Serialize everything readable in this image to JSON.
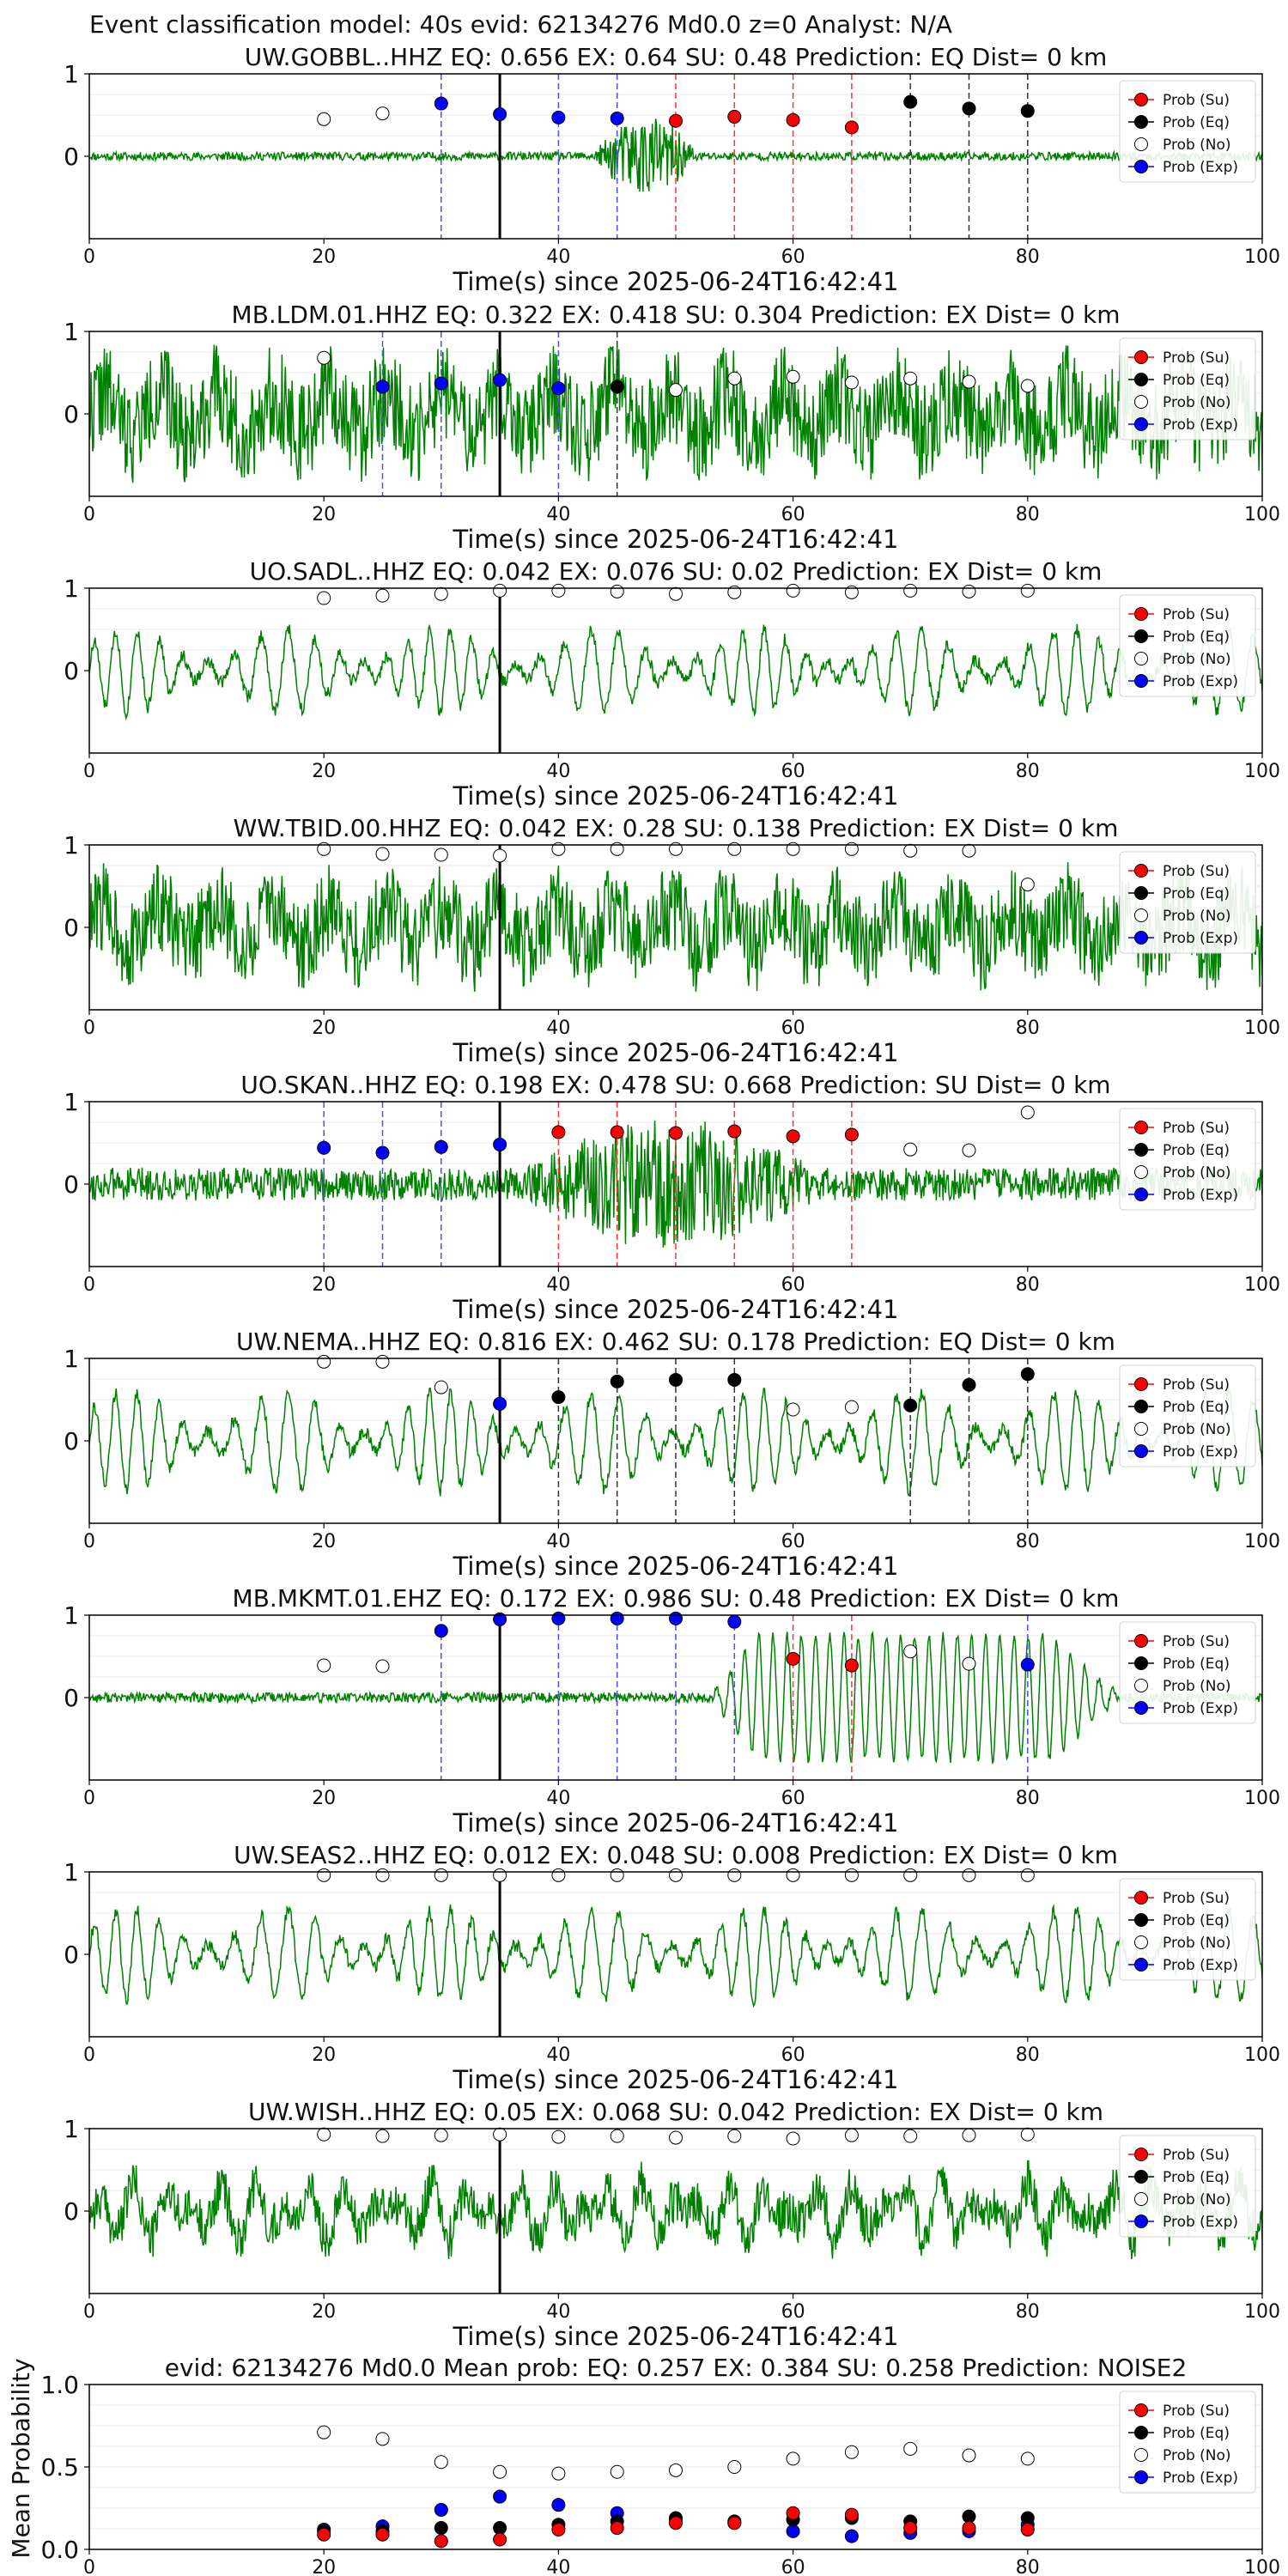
{
  "figure": {
    "suptitle": "Event classification model: 40s evid: 62134276 Md0.0 z=0 Analyst: N/A"
  },
  "legend_labels": [
    "Prob (Su)",
    "Prob (Eq)",
    "Prob (No)",
    "Prob (Exp)"
  ],
  "colors": {
    "Su": "#ff0000",
    "Eq": "#000000",
    "No": "#ffffff",
    "Exp": "#0000ff",
    "waveform": "#008000",
    "event_line": "#000000"
  },
  "chart_data": [
    {
      "type": "line+scatter",
      "title": "UW.GOBBL..HHZ   EQ: 0.656  EX: 0.64  SU: 0.48   Prediction: EQ    Dist= 0 km",
      "xlabel": "Time(s) since 2025-06-24T16:42:41",
      "xlim": [
        0,
        100
      ],
      "xticks": [
        "0",
        "20",
        "40",
        "60",
        "80",
        "100"
      ],
      "yticks": [
        "0",
        "1"
      ],
      "ylim": [
        -1,
        1
      ],
      "legend_position": "top-right",
      "event_time": 35,
      "waveform": {
        "style": "burst",
        "amp": 0.05,
        "seed": 11,
        "burst": [
          43,
          52,
          0.45
        ]
      },
      "points": [
        {
          "x": 20,
          "y": 0.45,
          "cls": "No"
        },
        {
          "x": 25,
          "y": 0.52,
          "cls": "No"
        },
        {
          "x": 30,
          "y": 0.64,
          "cls": "Exp"
        },
        {
          "x": 35,
          "y": 0.51,
          "cls": "Exp"
        },
        {
          "x": 40,
          "y": 0.47,
          "cls": "Exp"
        },
        {
          "x": 45,
          "y": 0.46,
          "cls": "Exp"
        },
        {
          "x": 50,
          "y": 0.43,
          "cls": "Su"
        },
        {
          "x": 55,
          "y": 0.48,
          "cls": "Su"
        },
        {
          "x": 60,
          "y": 0.44,
          "cls": "Su"
        },
        {
          "x": 65,
          "y": 0.35,
          "cls": "Su"
        },
        {
          "x": 70,
          "y": 0.66,
          "cls": "Eq"
        },
        {
          "x": 75,
          "y": 0.58,
          "cls": "Eq"
        },
        {
          "x": 80,
          "y": 0.55,
          "cls": "Eq"
        }
      ]
    },
    {
      "type": "line+scatter",
      "title": "MB.LDM.01.HHZ   EQ: 0.322  EX: 0.418  SU: 0.304   Prediction: EX    Dist= 0 km",
      "xlabel": "Time(s) since 2025-06-24T16:42:41",
      "xlim": [
        0,
        100
      ],
      "xticks": [
        "0",
        "20",
        "40",
        "60",
        "80",
        "100"
      ],
      "yticks": [
        "0",
        "1"
      ],
      "ylim": [
        -1,
        1
      ],
      "legend_position": "top-right",
      "event_time": 35,
      "waveform": {
        "style": "noise",
        "amp": 0.6,
        "seed": 22
      },
      "points": [
        {
          "x": 20,
          "y": 0.68,
          "cls": "No"
        },
        {
          "x": 25,
          "y": 0.33,
          "cls": "Exp"
        },
        {
          "x": 30,
          "y": 0.37,
          "cls": "Exp"
        },
        {
          "x": 35,
          "y": 0.41,
          "cls": "Exp"
        },
        {
          "x": 40,
          "y": 0.31,
          "cls": "Exp"
        },
        {
          "x": 45,
          "y": 0.33,
          "cls": "Eq"
        },
        {
          "x": 50,
          "y": 0.29,
          "cls": "No"
        },
        {
          "x": 55,
          "y": 0.43,
          "cls": "No"
        },
        {
          "x": 60,
          "y": 0.45,
          "cls": "No"
        },
        {
          "x": 65,
          "y": 0.38,
          "cls": "No"
        },
        {
          "x": 70,
          "y": 0.43,
          "cls": "No"
        },
        {
          "x": 75,
          "y": 0.39,
          "cls": "No"
        },
        {
          "x": 80,
          "y": 0.34,
          "cls": "No"
        }
      ]
    },
    {
      "type": "line+scatter",
      "title": "UO.SADL..HHZ   EQ: 0.042  EX: 0.076  SU: 0.02   Prediction: EX    Dist= 0 km",
      "xlabel": "Time(s) since 2025-06-24T16:42:41",
      "xlim": [
        0,
        100
      ],
      "xticks": [
        "0",
        "20",
        "40",
        "60",
        "80",
        "100"
      ],
      "yticks": [
        "0",
        "1"
      ],
      "ylim": [
        -1,
        1
      ],
      "legend_position": "top-right",
      "event_time": 35,
      "waveform": {
        "style": "osc",
        "amp": 0.5,
        "seed": 33
      },
      "points": [
        {
          "x": 20,
          "y": 0.88,
          "cls": "No"
        },
        {
          "x": 25,
          "y": 0.91,
          "cls": "No"
        },
        {
          "x": 30,
          "y": 0.93,
          "cls": "No"
        },
        {
          "x": 35,
          "y": 0.97,
          "cls": "No"
        },
        {
          "x": 40,
          "y": 0.97,
          "cls": "No"
        },
        {
          "x": 45,
          "y": 0.96,
          "cls": "No"
        },
        {
          "x": 50,
          "y": 0.93,
          "cls": "No"
        },
        {
          "x": 55,
          "y": 0.95,
          "cls": "No"
        },
        {
          "x": 60,
          "y": 0.97,
          "cls": "No"
        },
        {
          "x": 65,
          "y": 0.95,
          "cls": "No"
        },
        {
          "x": 70,
          "y": 0.97,
          "cls": "No"
        },
        {
          "x": 75,
          "y": 0.96,
          "cls": "No"
        },
        {
          "x": 80,
          "y": 0.97,
          "cls": "No"
        }
      ]
    },
    {
      "type": "line+scatter",
      "title": "WW.TBID.00.HHZ   EQ: 0.042  EX: 0.28  SU: 0.138   Prediction: EX    Dist= 0 km",
      "xlabel": "Time(s) since 2025-06-24T16:42:41",
      "xlim": [
        0,
        100
      ],
      "xticks": [
        "0",
        "20",
        "40",
        "60",
        "80",
        "100"
      ],
      "yticks": [
        "0",
        "1"
      ],
      "ylim": [
        -1,
        1
      ],
      "legend_position": "top-right",
      "event_time": 35,
      "waveform": {
        "style": "noise",
        "amp": 0.55,
        "seed": 44
      },
      "points": [
        {
          "x": 20,
          "y": 0.95,
          "cls": "No"
        },
        {
          "x": 25,
          "y": 0.89,
          "cls": "No"
        },
        {
          "x": 30,
          "y": 0.88,
          "cls": "No"
        },
        {
          "x": 35,
          "y": 0.87,
          "cls": "No"
        },
        {
          "x": 40,
          "y": 0.95,
          "cls": "No"
        },
        {
          "x": 45,
          "y": 0.95,
          "cls": "No"
        },
        {
          "x": 50,
          "y": 0.95,
          "cls": "No"
        },
        {
          "x": 55,
          "y": 0.95,
          "cls": "No"
        },
        {
          "x": 60,
          "y": 0.95,
          "cls": "No"
        },
        {
          "x": 65,
          "y": 0.95,
          "cls": "No"
        },
        {
          "x": 70,
          "y": 0.93,
          "cls": "No"
        },
        {
          "x": 75,
          "y": 0.93,
          "cls": "No"
        },
        {
          "x": 80,
          "y": 0.52,
          "cls": "No"
        }
      ]
    },
    {
      "type": "line+scatter",
      "title": "UO.SKAN..HHZ   EQ: 0.198  EX: 0.478  SU: 0.668   Prediction: SU    Dist= 0 km",
      "xlabel": "Time(s) since 2025-06-24T16:42:41",
      "xlim": [
        0,
        100
      ],
      "xticks": [
        "0",
        "20",
        "40",
        "60",
        "80",
        "100"
      ],
      "yticks": [
        "0",
        "1"
      ],
      "ylim": [
        -1,
        1
      ],
      "legend_position": "top-right",
      "event_time": 35,
      "waveform": {
        "style": "burst",
        "amp": 0.2,
        "seed": 55,
        "burst": [
          37,
          62,
          0.6
        ]
      },
      "points": [
        {
          "x": 20,
          "y": 0.44,
          "cls": "Exp"
        },
        {
          "x": 25,
          "y": 0.38,
          "cls": "Exp"
        },
        {
          "x": 30,
          "y": 0.45,
          "cls": "Exp"
        },
        {
          "x": 35,
          "y": 0.48,
          "cls": "Exp"
        },
        {
          "x": 40,
          "y": 0.63,
          "cls": "Su"
        },
        {
          "x": 45,
          "y": 0.63,
          "cls": "Su"
        },
        {
          "x": 50,
          "y": 0.62,
          "cls": "Su"
        },
        {
          "x": 55,
          "y": 0.64,
          "cls": "Su"
        },
        {
          "x": 60,
          "y": 0.58,
          "cls": "Su"
        },
        {
          "x": 65,
          "y": 0.6,
          "cls": "Su"
        },
        {
          "x": 70,
          "y": 0.42,
          "cls": "No"
        },
        {
          "x": 75,
          "y": 0.41,
          "cls": "No"
        },
        {
          "x": 80,
          "y": 0.87,
          "cls": "No"
        }
      ]
    },
    {
      "type": "line+scatter",
      "title": "UW.NEMA..HHZ   EQ: 0.816  EX: 0.462  SU: 0.178   Prediction: EQ    Dist= 0 km",
      "xlabel": "Time(s) since 2025-06-24T16:42:41",
      "xlim": [
        0,
        100
      ],
      "xticks": [
        "0",
        "20",
        "40",
        "60",
        "80",
        "100"
      ],
      "yticks": [
        "0",
        "1"
      ],
      "ylim": [
        -1,
        1
      ],
      "legend_position": "top-right",
      "event_time": 35,
      "waveform": {
        "style": "osc",
        "amp": 0.6,
        "seed": 66
      },
      "points": [
        {
          "x": 20,
          "y": 0.96,
          "cls": "No"
        },
        {
          "x": 25,
          "y": 0.96,
          "cls": "No"
        },
        {
          "x": 30,
          "y": 0.65,
          "cls": "No"
        },
        {
          "x": 35,
          "y": 0.45,
          "cls": "Exp"
        },
        {
          "x": 40,
          "y": 0.53,
          "cls": "Eq"
        },
        {
          "x": 45,
          "y": 0.72,
          "cls": "Eq"
        },
        {
          "x": 50,
          "y": 0.74,
          "cls": "Eq"
        },
        {
          "x": 55,
          "y": 0.74,
          "cls": "Eq"
        },
        {
          "x": 60,
          "y": 0.38,
          "cls": "No"
        },
        {
          "x": 65,
          "y": 0.41,
          "cls": "No"
        },
        {
          "x": 70,
          "y": 0.43,
          "cls": "Eq"
        },
        {
          "x": 75,
          "y": 0.68,
          "cls": "Eq"
        },
        {
          "x": 80,
          "y": 0.81,
          "cls": "Eq"
        }
      ]
    },
    {
      "type": "line+scatter",
      "title": "MB.MKMT.01.EHZ   EQ: 0.172  EX: 0.986  SU: 0.48   Prediction: EX    Dist= 0 km",
      "xlabel": "Time(s) since 2025-06-24T16:42:41",
      "xlim": [
        0,
        100
      ],
      "xticks": [
        "0",
        "20",
        "40",
        "60",
        "80",
        "100"
      ],
      "yticks": [
        "0",
        "1"
      ],
      "ylim": [
        -1,
        1
      ],
      "legend_position": "top-right",
      "event_time": 35,
      "waveform": {
        "style": "late",
        "amp": 0.06,
        "seed": 77,
        "burst": [
          53,
          88,
          0.75
        ]
      },
      "points": [
        {
          "x": 20,
          "y": 0.39,
          "cls": "No"
        },
        {
          "x": 25,
          "y": 0.38,
          "cls": "No"
        },
        {
          "x": 30,
          "y": 0.81,
          "cls": "Exp"
        },
        {
          "x": 35,
          "y": 0.95,
          "cls": "Exp"
        },
        {
          "x": 40,
          "y": 0.96,
          "cls": "Exp"
        },
        {
          "x": 45,
          "y": 0.96,
          "cls": "Exp"
        },
        {
          "x": 50,
          "y": 0.96,
          "cls": "Exp"
        },
        {
          "x": 55,
          "y": 0.92,
          "cls": "Exp"
        },
        {
          "x": 60,
          "y": 0.47,
          "cls": "Su"
        },
        {
          "x": 65,
          "y": 0.39,
          "cls": "Su"
        },
        {
          "x": 70,
          "y": 0.56,
          "cls": "No"
        },
        {
          "x": 75,
          "y": 0.41,
          "cls": "No"
        },
        {
          "x": 80,
          "y": 0.4,
          "cls": "Exp"
        }
      ]
    },
    {
      "type": "line+scatter",
      "title": "UW.SEAS2..HHZ   EQ: 0.012  EX: 0.048  SU: 0.008   Prediction: EX    Dist= 0 km",
      "xlabel": "Time(s) since 2025-06-24T16:42:41",
      "xlim": [
        0,
        100
      ],
      "xticks": [
        "0",
        "20",
        "40",
        "60",
        "80",
        "100"
      ],
      "yticks": [
        "0",
        "1"
      ],
      "ylim": [
        -1,
        1
      ],
      "legend_position": "top-right",
      "event_time": 35,
      "waveform": {
        "style": "osc",
        "amp": 0.55,
        "seed": 88
      },
      "points": [
        {
          "x": 20,
          "y": 0.96,
          "cls": "No"
        },
        {
          "x": 25,
          "y": 0.96,
          "cls": "No"
        },
        {
          "x": 30,
          "y": 0.96,
          "cls": "No"
        },
        {
          "x": 35,
          "y": 0.96,
          "cls": "No"
        },
        {
          "x": 40,
          "y": 0.96,
          "cls": "No"
        },
        {
          "x": 45,
          "y": 0.96,
          "cls": "No"
        },
        {
          "x": 50,
          "y": 0.96,
          "cls": "No"
        },
        {
          "x": 55,
          "y": 0.96,
          "cls": "No"
        },
        {
          "x": 60,
          "y": 0.96,
          "cls": "No"
        },
        {
          "x": 65,
          "y": 0.96,
          "cls": "No"
        },
        {
          "x": 70,
          "y": 0.96,
          "cls": "No"
        },
        {
          "x": 75,
          "y": 0.96,
          "cls": "No"
        },
        {
          "x": 80,
          "y": 0.96,
          "cls": "No"
        }
      ]
    },
    {
      "type": "line+scatter",
      "title": "UW.WISH..HHZ   EQ: 0.05  EX: 0.068  SU: 0.042   Prediction: EX    Dist= 0 km",
      "xlabel": "Time(s) since 2025-06-24T16:42:41",
      "xlim": [
        0,
        100
      ],
      "xticks": [
        "0",
        "20",
        "40",
        "60",
        "80",
        "100"
      ],
      "yticks": [
        "0",
        "1"
      ],
      "ylim": [
        -1,
        1
      ],
      "legend_position": "top-right",
      "event_time": 35,
      "waveform": {
        "style": "noise2",
        "amp": 0.45,
        "seed": 99
      },
      "points": [
        {
          "x": 20,
          "y": 0.93,
          "cls": "No"
        },
        {
          "x": 25,
          "y": 0.91,
          "cls": "No"
        },
        {
          "x": 30,
          "y": 0.92,
          "cls": "No"
        },
        {
          "x": 35,
          "y": 0.93,
          "cls": "No"
        },
        {
          "x": 40,
          "y": 0.9,
          "cls": "No"
        },
        {
          "x": 45,
          "y": 0.91,
          "cls": "No"
        },
        {
          "x": 50,
          "y": 0.89,
          "cls": "No"
        },
        {
          "x": 55,
          "y": 0.91,
          "cls": "No"
        },
        {
          "x": 60,
          "y": 0.88,
          "cls": "No"
        },
        {
          "x": 65,
          "y": 0.92,
          "cls": "No"
        },
        {
          "x": 70,
          "y": 0.91,
          "cls": "No"
        },
        {
          "x": 75,
          "y": 0.92,
          "cls": "No"
        },
        {
          "x": 80,
          "y": 0.93,
          "cls": "No"
        }
      ]
    },
    {
      "type": "scatter",
      "title": "evid: 62134276  Md0.0   Mean prob:    EQ: 0.257  EX: 0.384  SU: 0.258   Prediction: NOISE2",
      "xlabel": "",
      "ylabel": "Mean Probability",
      "xlim": [
        0,
        100
      ],
      "ylim": [
        0,
        1
      ],
      "xticks": [
        "0",
        "20",
        "40",
        "60",
        "80",
        "100"
      ],
      "yticks": [
        "0.0",
        "0.5",
        "1.0"
      ],
      "legend_position": "top-right",
      "x": [
        20,
        25,
        30,
        35,
        40,
        45,
        50,
        55,
        60,
        65,
        70,
        75,
        80
      ],
      "series": [
        {
          "name": "Prob (No)",
          "cls": "No",
          "values": [
            0.71,
            0.67,
            0.53,
            0.47,
            0.46,
            0.47,
            0.48,
            0.5,
            0.55,
            0.59,
            0.61,
            0.57,
            0.55
          ]
        },
        {
          "name": "Prob (Exp)",
          "cls": "Exp",
          "values": [
            0.12,
            0.14,
            0.24,
            0.32,
            0.27,
            0.22,
            0.18,
            0.16,
            0.11,
            0.08,
            0.1,
            0.11,
            0.15
          ]
        },
        {
          "name": "Prob (Eq)",
          "cls": "Eq",
          "values": [
            0.11,
            0.11,
            0.13,
            0.13,
            0.15,
            0.17,
            0.19,
            0.17,
            0.18,
            0.19,
            0.17,
            0.2,
            0.19
          ]
        },
        {
          "name": "Prob (Su)",
          "cls": "Su",
          "values": [
            0.09,
            0.09,
            0.05,
            0.06,
            0.12,
            0.13,
            0.16,
            0.16,
            0.22,
            0.21,
            0.13,
            0.13,
            0.12
          ]
        }
      ]
    }
  ]
}
